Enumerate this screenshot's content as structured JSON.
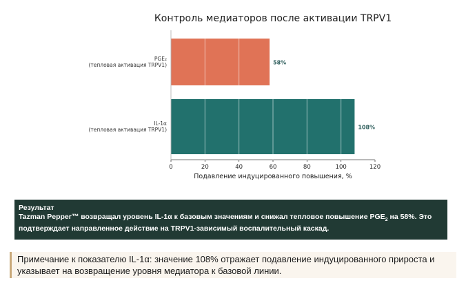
{
  "chart_data": {
    "type": "bar",
    "orientation": "horizontal",
    "title": "Контроль медиаторов после активации TRPV1",
    "xlabel": "Подавление индуцированного повышения, %",
    "ylabel": "",
    "xlim": [
      0,
      120
    ],
    "xticks": [
      0,
      20,
      40,
      60,
      80,
      100,
      120
    ],
    "grid": true,
    "categories": [
      {
        "line1": "PGE₂",
        "line2": "(тепловая активация TRPV1)"
      },
      {
        "line1": "IL-1α",
        "line2": "(тепловая активация TRPV1)"
      }
    ],
    "values": [
      58,
      108
    ],
    "value_labels": [
      "58%",
      "108%"
    ],
    "colors": [
      "#e07356",
      "#22716d"
    ],
    "label_colors": [
      "#2e5e5c",
      "#2e5e5c"
    ]
  },
  "result": {
    "title": "Результат",
    "text_before": "Tazman Pepper™ возвращал уровень IL-1α к базовым значениям и снижал тепловое повышение PGE",
    "subscript": "2",
    "text_after": " на 58%. Это подтверждает направленное действие на TRPV1-зависимый воспалительный каскад."
  },
  "note": {
    "text": "Примечание к показателю IL-1α: значение 108% отражает подавление индуцированного прироста и указывает на возвращение уровня медиатора к базовой линии."
  }
}
